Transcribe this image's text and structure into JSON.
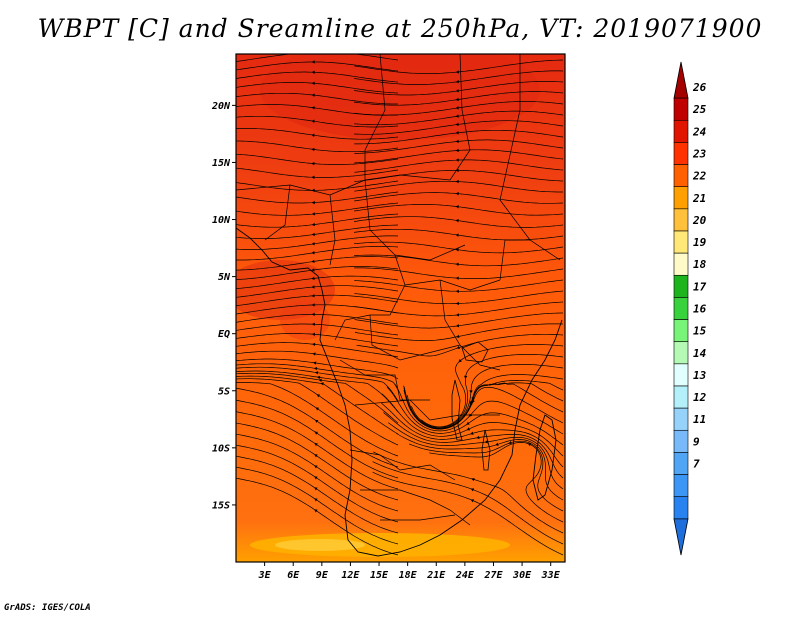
{
  "chart_data": {
    "type": "heatmap",
    "title": "WBPT [C] and Sreamline at 250hPa, VT: 2019071900",
    "footer": "GrADS: IGES/COLA",
    "x_ticks": [
      "3E",
      "6E",
      "9E",
      "12E",
      "15E",
      "18E",
      "21E",
      "24E",
      "27E",
      "30E",
      "33E"
    ],
    "x_tick_values": [
      3,
      6,
      9,
      12,
      15,
      18,
      21,
      24,
      27,
      30,
      33
    ],
    "y_ticks": [
      "20N",
      "15N",
      "10N",
      "5N",
      "EQ",
      "5S",
      "10S",
      "15S"
    ],
    "y_tick_values": [
      20,
      15,
      10,
      5,
      0,
      -5,
      -10,
      -15
    ],
    "xlim": [
      0,
      34.5
    ],
    "ylim": [
      -20,
      24.5
    ],
    "colorbar": {
      "labels": [
        "7",
        "9",
        "11",
        "12",
        "13",
        "14",
        "15",
        "16",
        "17",
        "18",
        "19",
        "20",
        "21",
        "22",
        "23",
        "24",
        "25",
        "26"
      ],
      "colors": [
        "#1e6edc",
        "#2882f0",
        "#3c96f5",
        "#50a5f5",
        "#78b9fa",
        "#96d2fa",
        "#b4f0fa",
        "#e1ffff",
        "#b4fab4",
        "#78f578",
        "#37d23c",
        "#1eb41e",
        "#fffac8",
        "#ffe878",
        "#ffc03c",
        "#ffa000",
        "#ff6000",
        "#ff3200",
        "#e11400",
        "#c00000",
        "#a50000"
      ]
    }
  }
}
